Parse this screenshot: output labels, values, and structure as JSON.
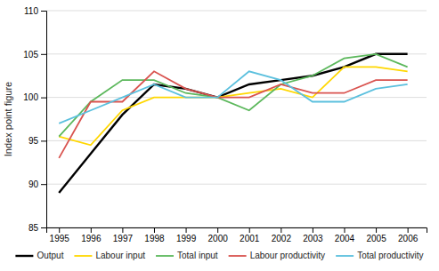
{
  "chart_data": {
    "type": "line",
    "x": [
      1995,
      1996,
      1997,
      1998,
      1999,
      2000,
      2001,
      2002,
      2003,
      2004,
      2005,
      2006
    ],
    "series": [
      {
        "name": "Output",
        "color": "#000000",
        "values": [
          89.0,
          93.5,
          98.0,
          101.5,
          101.0,
          100.0,
          101.5,
          102.0,
          102.5,
          103.5,
          105.0,
          105.0
        ]
      },
      {
        "name": "Labour input",
        "color": "#ffd700",
        "values": [
          95.5,
          94.5,
          98.5,
          100.0,
          100.0,
          100.0,
          100.5,
          101.0,
          100.0,
          103.5,
          103.5,
          103.0
        ]
      },
      {
        "name": "Total input",
        "color": "#5cb85c",
        "values": [
          95.5,
          99.5,
          102.0,
          102.0,
          100.5,
          100.0,
          98.5,
          101.5,
          102.5,
          104.5,
          105.0,
          103.5
        ]
      },
      {
        "name": "Labour productivity",
        "color": "#d9534f",
        "values": [
          93.0,
          99.5,
          99.5,
          103.0,
          101.0,
          100.0,
          100.0,
          101.5,
          100.5,
          100.5,
          102.0,
          102.0
        ]
      },
      {
        "name": "Total productivity",
        "color": "#5bc0de",
        "values": [
          97.0,
          98.5,
          100.0,
          101.5,
          100.0,
          100.0,
          103.0,
          102.0,
          99.5,
          99.5,
          101.0,
          101.5
        ]
      }
    ],
    "xlim": [
      1994.6,
      2006.6
    ],
    "xticks": [
      1995,
      1996,
      1997,
      1998,
      1999,
      2000,
      2001,
      2002,
      2003,
      2004,
      2005,
      2006
    ],
    "ylim": [
      85,
      110
    ],
    "yticks": [
      85,
      90,
      95,
      100,
      105,
      110
    ],
    "ylabel": "Index point figure",
    "grid": true,
    "legend": "bottom"
  }
}
